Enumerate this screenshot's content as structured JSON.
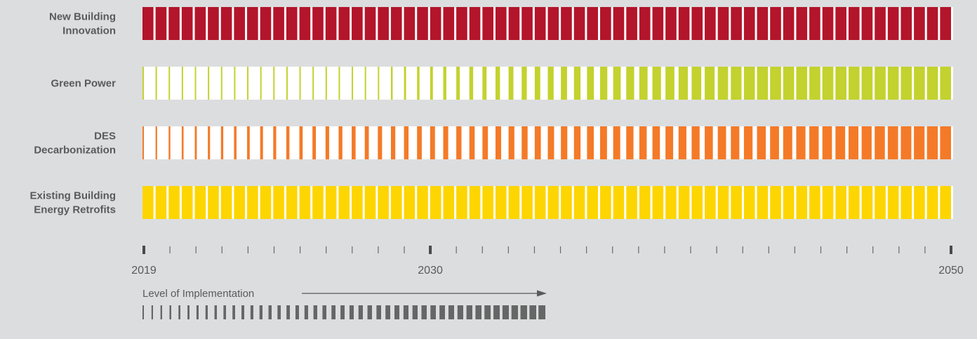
{
  "rows": [
    {
      "label_lines": [
        "New Building",
        "Innovation"
      ],
      "color": "#b3152b"
    },
    {
      "label_lines": [
        "Green Power"
      ],
      "color": "#c3d22e"
    },
    {
      "label_lines": [
        "DES",
        "Decarbonization"
      ],
      "color": "#f47a28"
    },
    {
      "label_lines": [
        "Existing Building",
        "Energy Retrofits"
      ],
      "color": "#fdd500"
    }
  ],
  "timeline": {
    "start": 2019,
    "end": 2050,
    "labeled_years": [
      2019,
      2030,
      2050
    ]
  },
  "legend": {
    "label": "Level of Implementation",
    "color": "#666666"
  }
}
